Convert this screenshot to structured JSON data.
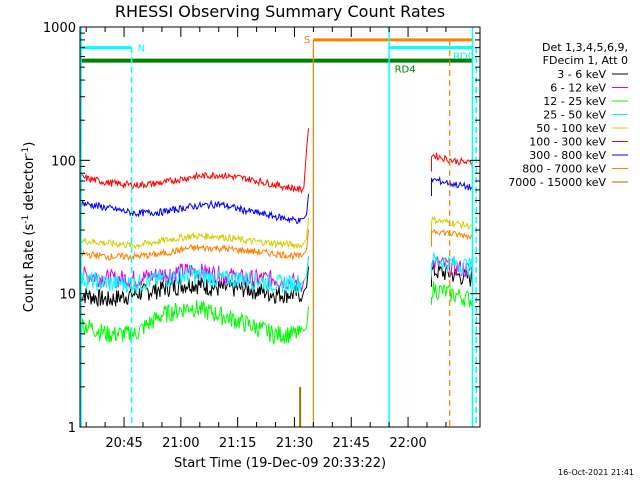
{
  "chart_data": {
    "type": "line",
    "title": "RHESSI Observing Summary Count Rates",
    "xlabel": "Start Time (19-Dec-09 20:33:22)",
    "ylabel_main": "Count Rate (s",
    "ylabel_sup1": "-1",
    "ylabel_mid": " detector",
    "ylabel_sup2": "-1",
    "ylabel_end": ")",
    "y_scale": "log",
    "ylim": [
      1,
      1000
    ],
    "xlim": [
      "20:33:22",
      "22:19:00"
    ],
    "x_ticks": [
      "20:45",
      "21:00",
      "21:15",
      "21:30",
      "21:45",
      "22:00"
    ],
    "y_ticks": [
      "1",
      "10",
      "100",
      "1000"
    ],
    "legend_header": [
      "Det 1,3,4,5,6,9,",
      "FDecim 1, Att 0"
    ],
    "legend_position": "right",
    "data_gap": [
      "21:34",
      "22:05"
    ],
    "series": [
      {
        "name": "3 - 6 keV",
        "color": "#000000",
        "before_gap": [
          10,
          9,
          10,
          11,
          12,
          11,
          11,
          10,
          10
        ],
        "after_gap": [
          15,
          14,
          13
        ]
      },
      {
        "name": "6 - 12 keV",
        "color": "#e000e0",
        "before_gap": [
          14,
          13,
          13,
          14,
          15,
          14,
          13,
          13,
          12
        ],
        "after_gap": [
          17,
          16,
          15
        ]
      },
      {
        "name": "12 - 25 keV",
        "color": "#00ff00",
        "before_gap": [
          6,
          5,
          5,
          7,
          8,
          7,
          6,
          5,
          5
        ],
        "after_gap": [
          11,
          10,
          9
        ]
      },
      {
        "name": "25 - 50 keV",
        "color": "#00ffff",
        "before_gap": [
          13,
          12,
          12,
          13,
          14,
          13,
          13,
          12,
          12
        ],
        "after_gap": [
          18,
          17,
          16
        ]
      },
      {
        "name": "50 - 100 keV",
        "color": "#d0d000",
        "before_gap": [
          25,
          24,
          23,
          25,
          27,
          27,
          25,
          24,
          23
        ],
        "after_gap": [
          36,
          34,
          32
        ]
      },
      {
        "name": "100 - 300 keV",
        "color": "#ff0000",
        "before_gap": [
          75,
          68,
          65,
          68,
          75,
          78,
          73,
          66,
          60
        ],
        "after_gap": [
          110,
          100,
          95
        ]
      },
      {
        "name": "300 - 800 keV",
        "color": "#0000ff",
        "before_gap": [
          48,
          44,
          40,
          41,
          45,
          47,
          42,
          38,
          35
        ],
        "after_gap": [
          72,
          67,
          62
        ]
      },
      {
        "name": "800 - 7000 keV",
        "color": "#ff8000",
        "before_gap": [
          20,
          19,
          19,
          20,
          22,
          22,
          21,
          20,
          19
        ],
        "after_gap": [
          30,
          28,
          27
        ]
      },
      {
        "name": "7000 - 15000 keV",
        "color": "#a07000",
        "before_gap": [],
        "after_gap": []
      }
    ],
    "bars": [
      {
        "label": "N",
        "color": "#00ffff",
        "y": 700,
        "x_start": "20:33:22",
        "x_end": "20:47",
        "dash_x": "20:47"
      },
      {
        "label": "S",
        "color": "#ff8000",
        "y": 800,
        "x_start": "21:35",
        "x_end": "22:17"
      },
      {
        "label": "RD0",
        "color": "#00ffff",
        "y": 700,
        "x_start": "21:55",
        "x_end": "22:17"
      },
      {
        "label": "RD4",
        "color": "#008000",
        "y": 560,
        "x_start": "20:33:22",
        "x_end": "22:17"
      }
    ],
    "grid": false
  },
  "footer": "16-Oct-2021 21:41"
}
